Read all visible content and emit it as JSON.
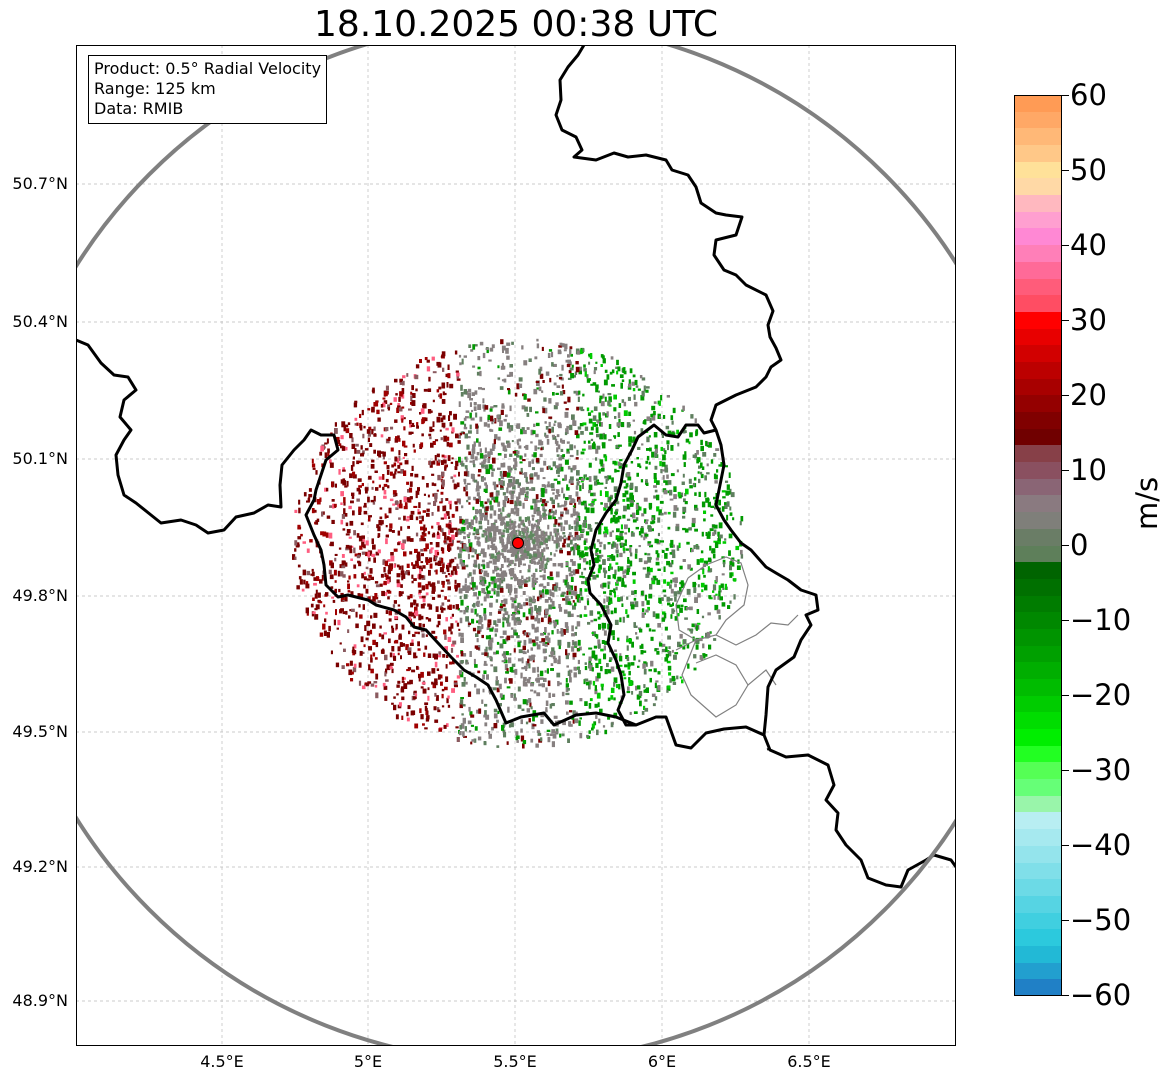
{
  "title": "18.10.2025 00:38 UTC",
  "info": {
    "product": "Product: 0.5° Radial Velocity",
    "range": "Range: 125 km",
    "source": "Data: RMIB"
  },
  "axes": {
    "lat_labels": [
      "50.7°N",
      "50.4°N",
      "50.1°N",
      "49.8°N",
      "49.5°N",
      "49.2°N",
      "48.9°N"
    ],
    "lon_labels": [
      "4.5°E",
      "5°E",
      "5.5°E",
      "6°E",
      "6.5°E"
    ]
  },
  "colorbar": {
    "label": "m/s",
    "ticks": [
      "60",
      "50",
      "40",
      "30",
      "20",
      "10",
      "0",
      "−10",
      "−20",
      "−30",
      "−40",
      "−50",
      "−60"
    ],
    "range": [
      -60,
      60
    ]
  },
  "colors": {
    "range_ring": "#808080",
    "border": "#000000",
    "radar_site": "#ff0000",
    "inbound": "#00aa00",
    "outbound": "#990000",
    "near_zero": "#808080"
  }
}
